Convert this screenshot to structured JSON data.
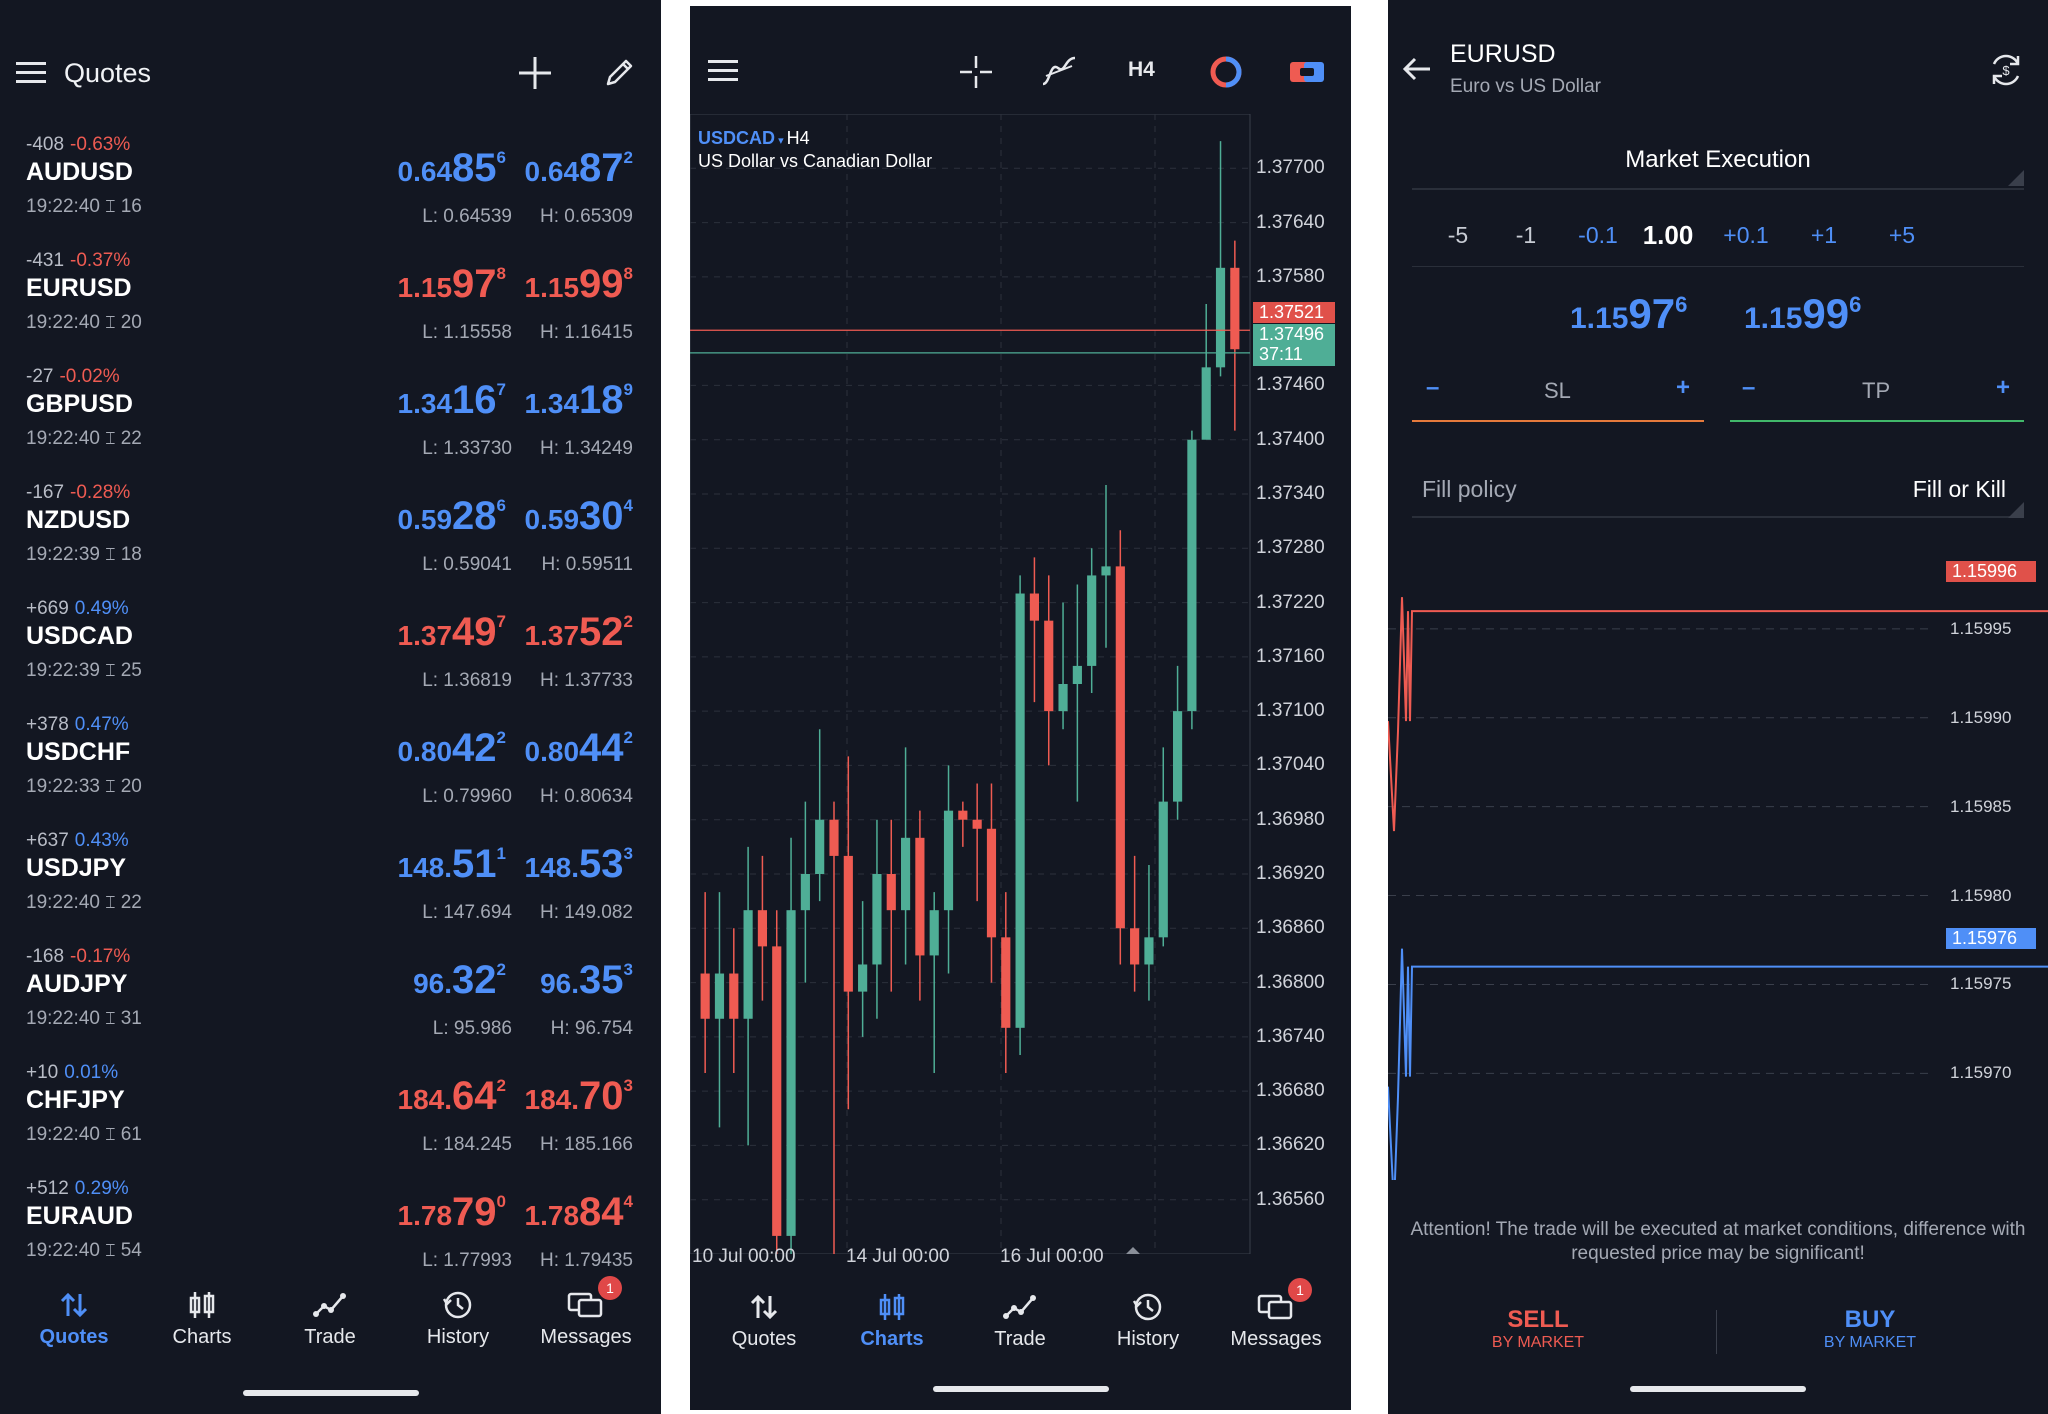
{
  "quotes_panel": {
    "title": "Quotes",
    "rows": [
      {
        "change": "-408",
        "pct": "-0.63%",
        "pct_color": "red",
        "symbol": "AUDUSD",
        "time": "19:22:40",
        "spread": "16",
        "bid_pre": "0.64",
        "bid_big": "85",
        "bid_sup": "6",
        "ask_pre": "0.64",
        "ask_big": "87",
        "ask_sup": "2",
        "price_color": "blue",
        "low": "L: 0.64539",
        "high": "H: 0.65309"
      },
      {
        "change": "-431",
        "pct": "-0.37%",
        "pct_color": "red",
        "symbol": "EURUSD",
        "time": "19:22:40",
        "spread": "20",
        "bid_pre": "1.15",
        "bid_big": "97",
        "bid_sup": "8",
        "ask_pre": "1.15",
        "ask_big": "99",
        "ask_sup": "8",
        "price_color": "red",
        "low": "L: 1.15558",
        "high": "H: 1.16415"
      },
      {
        "change": "-27",
        "pct": "-0.02%",
        "pct_color": "red",
        "symbol": "GBPUSD",
        "time": "19:22:40",
        "spread": "22",
        "bid_pre": "1.34",
        "bid_big": "16",
        "bid_sup": "7",
        "ask_pre": "1.34",
        "ask_big": "18",
        "ask_sup": "9",
        "price_color": "blue",
        "low": "L: 1.33730",
        "high": "H: 1.34249"
      },
      {
        "change": "-167",
        "pct": "-0.28%",
        "pct_color": "red",
        "symbol": "NZDUSD",
        "time": "19:22:39",
        "spread": "18",
        "bid_pre": "0.59",
        "bid_big": "28",
        "bid_sup": "6",
        "ask_pre": "0.59",
        "ask_big": "30",
        "ask_sup": "4",
        "price_color": "blue",
        "low": "L: 0.59041",
        "high": "H: 0.59511"
      },
      {
        "change": "+669",
        "pct": "0.49%",
        "pct_color": "blue",
        "symbol": "USDCAD",
        "time": "19:22:39",
        "spread": "25",
        "bid_pre": "1.37",
        "bid_big": "49",
        "bid_sup": "7",
        "ask_pre": "1.37",
        "ask_big": "52",
        "ask_sup": "2",
        "price_color": "red",
        "low": "L: 1.36819",
        "high": "H: 1.37733"
      },
      {
        "change": "+378",
        "pct": "0.47%",
        "pct_color": "blue",
        "symbol": "USDCHF",
        "time": "19:22:33",
        "spread": "20",
        "bid_pre": "0.80",
        "bid_big": "42",
        "bid_sup": "2",
        "ask_pre": "0.80",
        "ask_big": "44",
        "ask_sup": "2",
        "price_color": "blue",
        "low": "L: 0.79960",
        "high": "H: 0.80634"
      },
      {
        "change": "+637",
        "pct": "0.43%",
        "pct_color": "blue",
        "symbol": "USDJPY",
        "time": "19:22:40",
        "spread": "22",
        "bid_pre": "148.",
        "bid_big": "51",
        "bid_sup": "1",
        "ask_pre": "148.",
        "ask_big": "53",
        "ask_sup": "3",
        "price_color": "blue",
        "low": "L: 147.694",
        "high": "H: 149.082"
      },
      {
        "change": "-168",
        "pct": "-0.17%",
        "pct_color": "red",
        "symbol": "AUDJPY",
        "time": "19:22:40",
        "spread": "31",
        "bid_pre": "96.",
        "bid_big": "32",
        "bid_sup": "2",
        "ask_pre": "96.",
        "ask_big": "35",
        "ask_sup": "3",
        "price_color": "blue",
        "low": "L: 95.986",
        "high": "H: 96.754"
      },
      {
        "change": "+10",
        "pct": "0.01%",
        "pct_color": "blue",
        "symbol": "CHFJPY",
        "time": "19:22:40",
        "spread": "61",
        "bid_pre": "184.",
        "bid_big": "64",
        "bid_sup": "2",
        "ask_pre": "184.",
        "ask_big": "70",
        "ask_sup": "3",
        "price_color": "red",
        "low": "L: 184.245",
        "high": "H: 185.166"
      },
      {
        "change": "+512",
        "pct": "0.29%",
        "pct_color": "blue",
        "symbol": "EURAUD",
        "time": "19:22:40",
        "spread": "54",
        "bid_pre": "1.78",
        "bid_big": "79",
        "bid_sup": "0",
        "ask_pre": "1.78",
        "ask_big": "84",
        "ask_sup": "4",
        "price_color": "red",
        "low": "L: 1.77993",
        "high": "H: 1.79435"
      }
    ]
  },
  "nav": {
    "quotes": "Quotes",
    "charts": "Charts",
    "trade": "Trade",
    "history": "History",
    "messages": "Messages",
    "badge": "1"
  },
  "chart_panel": {
    "timeframe_button": "H4",
    "symbol": "USDCAD",
    "period": "H4",
    "description": "US Dollar vs Canadian Dollar",
    "ask_tag": "1.37521",
    "bid_tag": "1.37496",
    "countdown": "37:11"
  },
  "chart_data": {
    "type": "candlestick",
    "title": "USDCAD H4",
    "subtitle": "US Dollar vs Canadian Dollar",
    "ylim": [
      1.365,
      1.3776
    ],
    "y_ticks": [
      "1.37700",
      "1.37640",
      "1.37580",
      "1.37460",
      "1.37400",
      "1.37340",
      "1.37280",
      "1.37220",
      "1.37160",
      "1.37100",
      "1.37040",
      "1.36980",
      "1.36920",
      "1.36860",
      "1.36800",
      "1.36740",
      "1.36680",
      "1.36620",
      "1.36560"
    ],
    "x_ticks": [
      "10 Jul 00:00",
      "14 Jul 00:00",
      "16 Jul 00:00"
    ],
    "ask_line": 1.37521,
    "bid_line": 1.37496,
    "grid": true,
    "candles": [
      [
        1.3681,
        1.3676,
        1.369,
        1.367
      ],
      [
        1.3676,
        1.3681,
        1.369,
        1.3664
      ],
      [
        1.3681,
        1.3676,
        1.3686,
        1.367
      ],
      [
        1.3676,
        1.3688,
        1.3695,
        1.3662
      ],
      [
        1.3688,
        1.3684,
        1.3694,
        1.3678
      ],
      [
        1.3684,
        1.3652,
        1.3688,
        1.3649
      ],
      [
        1.3652,
        1.3688,
        1.3696,
        1.3646
      ],
      [
        1.3688,
        1.3692,
        1.37,
        1.368
      ],
      [
        1.3692,
        1.3698,
        1.3708,
        1.3689
      ],
      [
        1.3698,
        1.3694,
        1.37,
        1.3648
      ],
      [
        1.3694,
        1.3679,
        1.3705,
        1.3666
      ],
      [
        1.3679,
        1.3682,
        1.3689,
        1.3674
      ],
      [
        1.3682,
        1.3692,
        1.3698,
        1.3676
      ],
      [
        1.3692,
        1.3688,
        1.3698,
        1.3679
      ],
      [
        1.3688,
        1.3696,
        1.3706,
        1.3682
      ],
      [
        1.3696,
        1.3683,
        1.3699,
        1.3678
      ],
      [
        1.3683,
        1.3688,
        1.369,
        1.367
      ],
      [
        1.3688,
        1.3699,
        1.3704,
        1.3681
      ],
      [
        1.3699,
        1.3698,
        1.37,
        1.3695
      ],
      [
        1.3698,
        1.3697,
        1.3702,
        1.3689
      ],
      [
        1.3697,
        1.3685,
        1.3702,
        1.368
      ],
      [
        1.3685,
        1.3675,
        1.369,
        1.367
      ],
      [
        1.3675,
        1.3723,
        1.3725,
        1.3672
      ],
      [
        1.3723,
        1.372,
        1.3727,
        1.3711
      ],
      [
        1.372,
        1.371,
        1.3725,
        1.3704
      ],
      [
        1.371,
        1.3713,
        1.3722,
        1.3708
      ],
      [
        1.3713,
        1.3715,
        1.3724,
        1.37
      ],
      [
        1.3715,
        1.3725,
        1.3728,
        1.3712
      ],
      [
        1.3725,
        1.3726,
        1.3735,
        1.3717
      ],
      [
        1.3726,
        1.3686,
        1.373,
        1.3682
      ],
      [
        1.3686,
        1.3682,
        1.3694,
        1.3679
      ],
      [
        1.3682,
        1.3685,
        1.3693,
        1.3678
      ],
      [
        1.3685,
        1.37,
        1.3706,
        1.3684
      ],
      [
        1.37,
        1.371,
        1.3715,
        1.3698
      ],
      [
        1.371,
        1.374,
        1.3741,
        1.3708
      ],
      [
        1.374,
        1.3748,
        1.3755,
        1.3742
      ],
      [
        1.3748,
        1.3759,
        1.3773,
        1.3747
      ],
      [
        1.3759,
        1.375,
        1.3762,
        1.3741
      ]
    ]
  },
  "trade_panel": {
    "symbol": "EURUSD",
    "description": "Euro vs US Dollar",
    "execution": "Market Execution",
    "steps": [
      "-5",
      "-1",
      "-0.1",
      "1.00",
      "+0.1",
      "+1",
      "+5"
    ],
    "sell_pre": "1.15",
    "sell_big": "97",
    "sell_sup": "6",
    "buy_pre": "1.15",
    "buy_big": "99",
    "buy_sup": "6",
    "sl_label": "SL",
    "tp_label": "TP",
    "minus": "–",
    "plus": "+",
    "fill_policy_label": "Fill policy",
    "fill_policy_value": "Fill or Kill",
    "ask_tag": "1.15996",
    "bid_tag": "1.15976",
    "y_labels": [
      "1.15995",
      "1.15990",
      "1.15985",
      "1.15980",
      "1.15975",
      "1.15970"
    ],
    "attention": "Attention! The trade will be executed at market conditions, difference with requested price may be significant!",
    "sell_label": "SELL",
    "sell_sub": "BY MARKET",
    "buy_label": "BUY",
    "buy_sub": "BY MARKET"
  },
  "colors": {
    "bg": "#131722",
    "blue": "#4f8ff7",
    "red": "#ef5b52",
    "green": "#4fae96",
    "grid": "#3a3f4b"
  }
}
